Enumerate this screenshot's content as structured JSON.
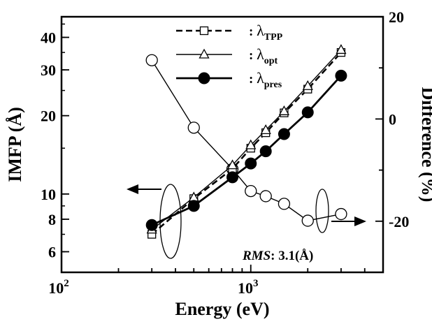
{
  "chart_data": {
    "type": "line",
    "title": "",
    "xlabel": "Energy (eV)",
    "ylabel": "IMFP (Å)",
    "y2label": "Difference (%)",
    "xscale": "log",
    "yscale": "log",
    "xlim": [
      100,
      5000
    ],
    "ylim": [
      5,
      48
    ],
    "y2lim": [
      -30,
      20
    ],
    "grid": false,
    "legend_position": "top-center",
    "x_ticks": [
      {
        "value": 100,
        "base": "10",
        "exp": "2"
      },
      {
        "value": 1000,
        "base": "10",
        "exp": "3"
      }
    ],
    "y_ticks": [
      {
        "value": 6,
        "label": "6"
      },
      {
        "value": 8,
        "label": "8"
      },
      {
        "value": 10,
        "label": "10"
      },
      {
        "value": 20,
        "label": "20"
      },
      {
        "value": 30,
        "label": "30"
      },
      {
        "value": 40,
        "label": "40"
      }
    ],
    "y2_ticks": [
      {
        "value": -20,
        "label": "-20"
      },
      {
        "value": 0,
        "label": "0"
      },
      {
        "value": 20,
        "label": "20"
      }
    ],
    "series": [
      {
        "name": "λTPP",
        "legend_main": "λ",
        "legend_sub": "TPP",
        "legend_prefix": ":",
        "axis": "left",
        "line_style": "dashed",
        "marker": "open-square",
        "x": [
          300,
          500,
          800,
          1000,
          1200,
          1500,
          2000,
          3000
        ],
        "y": [
          7.0,
          9.6,
          12.5,
          15.0,
          17.2,
          20.5,
          25.3,
          35.0
        ]
      },
      {
        "name": "λopt",
        "legend_main": "λ",
        "legend_sub": "opt",
        "legend_prefix": ":",
        "axis": "left",
        "line_style": "thin-solid",
        "marker": "open-triangle",
        "x": [
          300,
          500,
          800,
          1000,
          1200,
          1500,
          2000,
          3000
        ],
        "y": [
          7.3,
          9.7,
          12.9,
          15.4,
          17.6,
          20.8,
          26.0,
          35.8
        ]
      },
      {
        "name": "λpres",
        "legend_main": "λ",
        "legend_sub": "pres",
        "legend_prefix": ":",
        "axis": "left",
        "line_style": "thick-solid",
        "marker": "filled-circle",
        "x": [
          300,
          500,
          800,
          1000,
          1200,
          1500,
          2000,
          3000
        ],
        "y": [
          7.6,
          9.0,
          11.6,
          13.1,
          14.6,
          17.0,
          20.6,
          28.5
        ]
      },
      {
        "name": "Difference",
        "axis": "right",
        "line_style": "thin-solid",
        "marker": "open-circle",
        "x": [
          300,
          500,
          800,
          1000,
          1200,
          1500,
          2000,
          3000
        ],
        "y": [
          11.5,
          -1.7,
          -9.8,
          -14.1,
          -15.1,
          -16.6,
          -19.9,
          -18.6
        ]
      }
    ],
    "annotations": [
      {
        "label": "RMS",
        "text": ": 3.1(Å)"
      }
    ]
  }
}
